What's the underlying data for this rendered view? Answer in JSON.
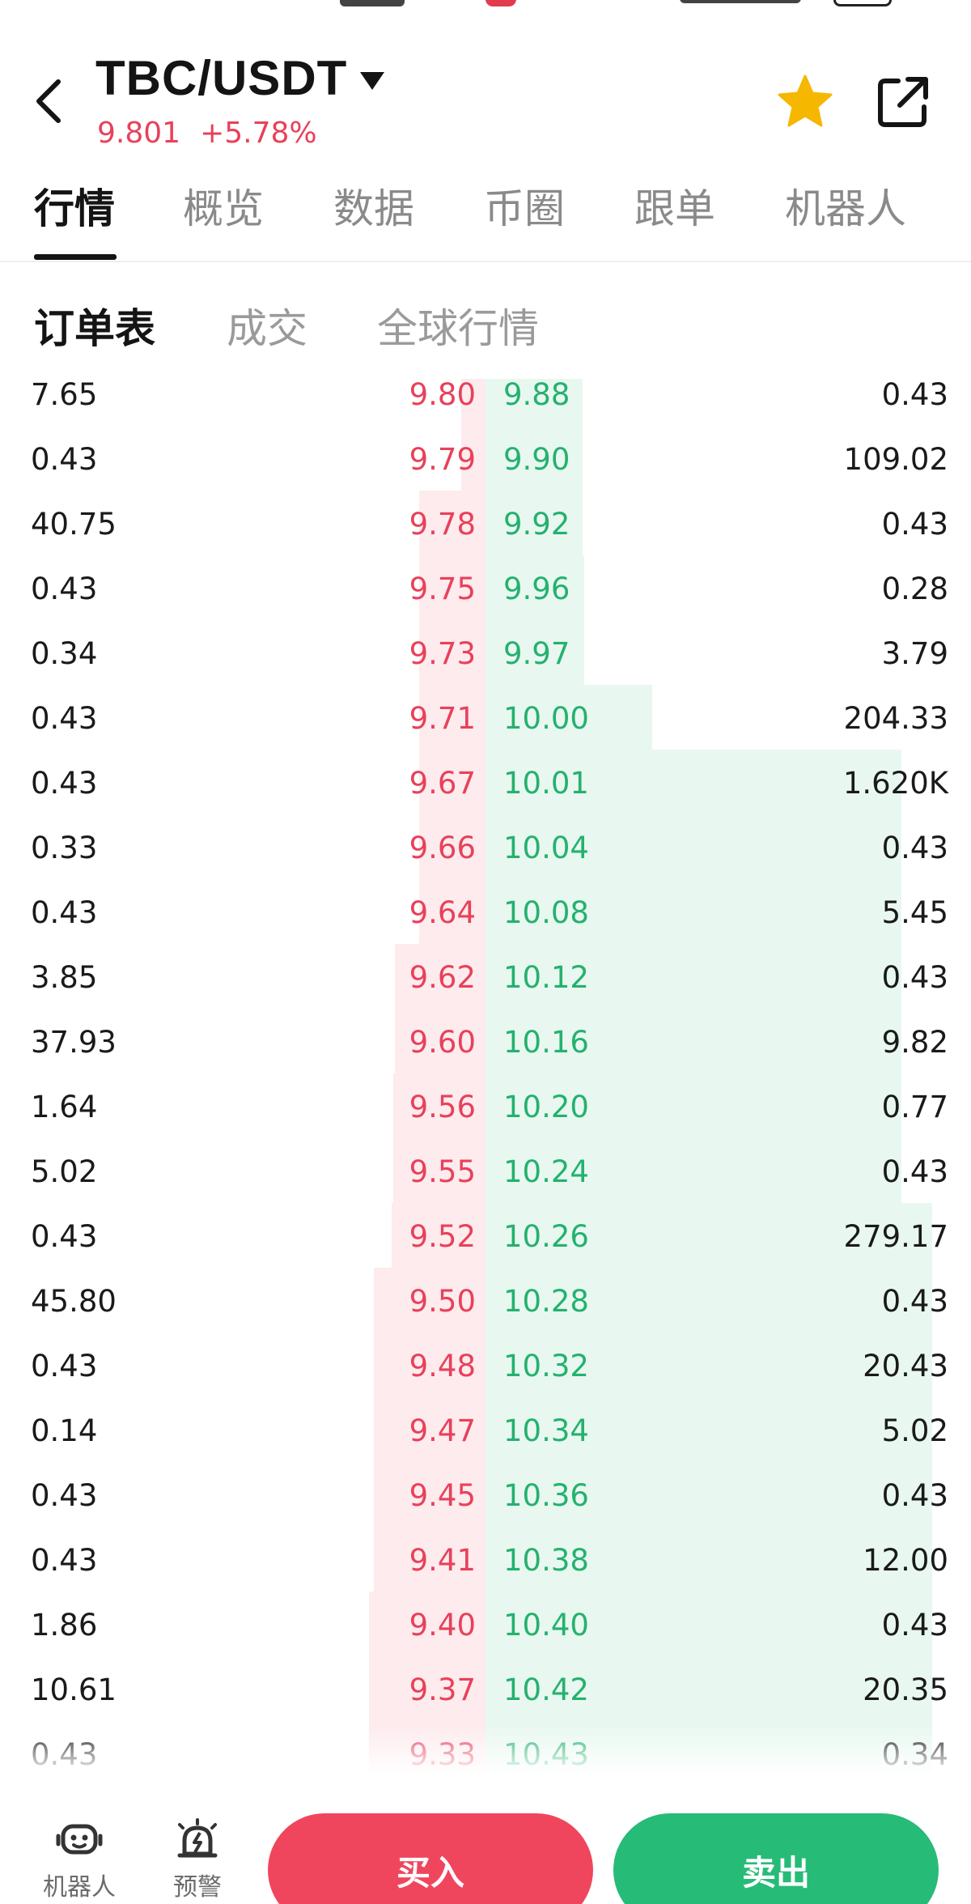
{
  "header": {
    "pair": "TBC/USDT",
    "last_price": "9.801",
    "change_pct": "+5.78%"
  },
  "main_tabs": [
    "行情",
    "概览",
    "数据",
    "币圈",
    "跟单",
    "机器人"
  ],
  "active_main_tab": 0,
  "sub_tabs": [
    "订单表",
    "成交",
    "全球行情"
  ],
  "active_sub_tab": 0,
  "order_book": {
    "rows": [
      {
        "bid_amount": "7.65",
        "bid_price": "9.80",
        "ask_price": "9.88",
        "ask_amount": "0.43"
      },
      {
        "bid_amount": "0.43",
        "bid_price": "9.79",
        "ask_price": "9.90",
        "ask_amount": "109.02"
      },
      {
        "bid_amount": "40.75",
        "bid_price": "9.78",
        "ask_price": "9.92",
        "ask_amount": "0.43"
      },
      {
        "bid_amount": "0.43",
        "bid_price": "9.75",
        "ask_price": "9.96",
        "ask_amount": "0.28"
      },
      {
        "bid_amount": "0.34",
        "bid_price": "9.73",
        "ask_price": "9.97",
        "ask_amount": "3.79"
      },
      {
        "bid_amount": "0.43",
        "bid_price": "9.71",
        "ask_price": "10.00",
        "ask_amount": "204.33"
      },
      {
        "bid_amount": "0.43",
        "bid_price": "9.67",
        "ask_price": "10.01",
        "ask_amount": "1.620K"
      },
      {
        "bid_amount": "0.33",
        "bid_price": "9.66",
        "ask_price": "10.04",
        "ask_amount": "0.43"
      },
      {
        "bid_amount": "0.43",
        "bid_price": "9.64",
        "ask_price": "10.08",
        "ask_amount": "5.45"
      },
      {
        "bid_amount": "3.85",
        "bid_price": "9.62",
        "ask_price": "10.12",
        "ask_amount": "0.43"
      },
      {
        "bid_amount": "37.93",
        "bid_price": "9.60",
        "ask_price": "10.16",
        "ask_amount": "9.82"
      },
      {
        "bid_amount": "1.64",
        "bid_price": "9.56",
        "ask_price": "10.20",
        "ask_amount": "0.77"
      },
      {
        "bid_amount": "5.02",
        "bid_price": "9.55",
        "ask_price": "10.24",
        "ask_amount": "0.43"
      },
      {
        "bid_amount": "0.43",
        "bid_price": "9.52",
        "ask_price": "10.26",
        "ask_amount": "279.17"
      },
      {
        "bid_amount": "45.80",
        "bid_price": "9.50",
        "ask_price": "10.28",
        "ask_amount": "0.43"
      },
      {
        "bid_amount": "0.43",
        "bid_price": "9.48",
        "ask_price": "10.32",
        "ask_amount": "20.43"
      },
      {
        "bid_amount": "0.14",
        "bid_price": "9.47",
        "ask_price": "10.34",
        "ask_amount": "5.02"
      },
      {
        "bid_amount": "0.43",
        "bid_price": "9.45",
        "ask_price": "10.36",
        "ask_amount": "0.43"
      },
      {
        "bid_amount": "0.43",
        "bid_price": "9.41",
        "ask_price": "10.38",
        "ask_amount": "12.00"
      },
      {
        "bid_amount": "1.86",
        "bid_price": "9.40",
        "ask_price": "10.40",
        "ask_amount": "0.43"
      },
      {
        "bid_amount": "10.61",
        "bid_price": "9.37",
        "ask_price": "10.42",
        "ask_amount": "20.35"
      },
      {
        "bid_amount": "0.43",
        "bid_price": "9.33",
        "ask_price": "10.43",
        "ask_amount": "0.34"
      }
    ]
  },
  "footer": {
    "bot_label": "机器人",
    "alert_label": "预警",
    "buy_label": "买入",
    "sell_label": "卖出"
  },
  "colors": {
    "up_red": "#e8415a",
    "down_green": "#25b16f",
    "star": "#f5b700"
  },
  "icons": [
    "back-arrow-icon",
    "dropdown-caret-icon",
    "star-icon",
    "share-icon",
    "robot-icon",
    "alarm-icon"
  ]
}
